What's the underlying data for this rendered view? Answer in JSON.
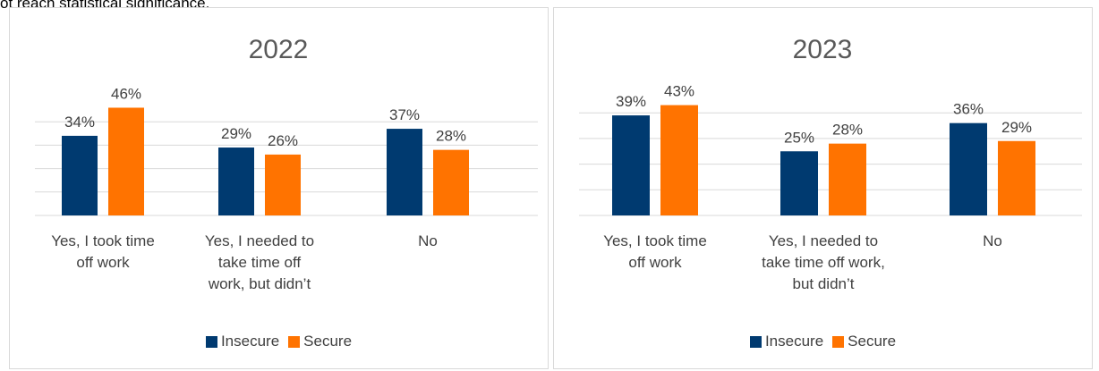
{
  "intro_text": "ot reach statistical significance.",
  "colors": {
    "insecure": "#003A70",
    "secure": "#FF7300",
    "grid": "#d9d9d9"
  },
  "chart_data": [
    {
      "type": "bar",
      "title": "2022",
      "categories": [
        [
          "Yes, I took time",
          "off work"
        ],
        [
          "Yes, I needed to",
          "take time off",
          "work, but didn’t"
        ],
        [
          "No"
        ]
      ],
      "series": [
        {
          "name": "Insecure",
          "values": [
            34,
            29,
            37
          ]
        },
        {
          "name": "Secure",
          "values": [
            46,
            26,
            28
          ]
        }
      ],
      "ylim": [
        0,
        50
      ],
      "grid": true,
      "legend": "bottom"
    },
    {
      "type": "bar",
      "title": "2023",
      "categories": [
        [
          "Yes, I took time",
          "off work"
        ],
        [
          "Yes, I needed to",
          "take time off work,",
          "but didn’t"
        ],
        [
          "No"
        ]
      ],
      "series": [
        {
          "name": "Insecure",
          "values": [
            39,
            25,
            36
          ]
        },
        {
          "name": "Secure",
          "values": [
            43,
            28,
            29
          ]
        }
      ],
      "ylim": [
        0,
        50
      ],
      "grid": true,
      "legend": "bottom"
    }
  ]
}
